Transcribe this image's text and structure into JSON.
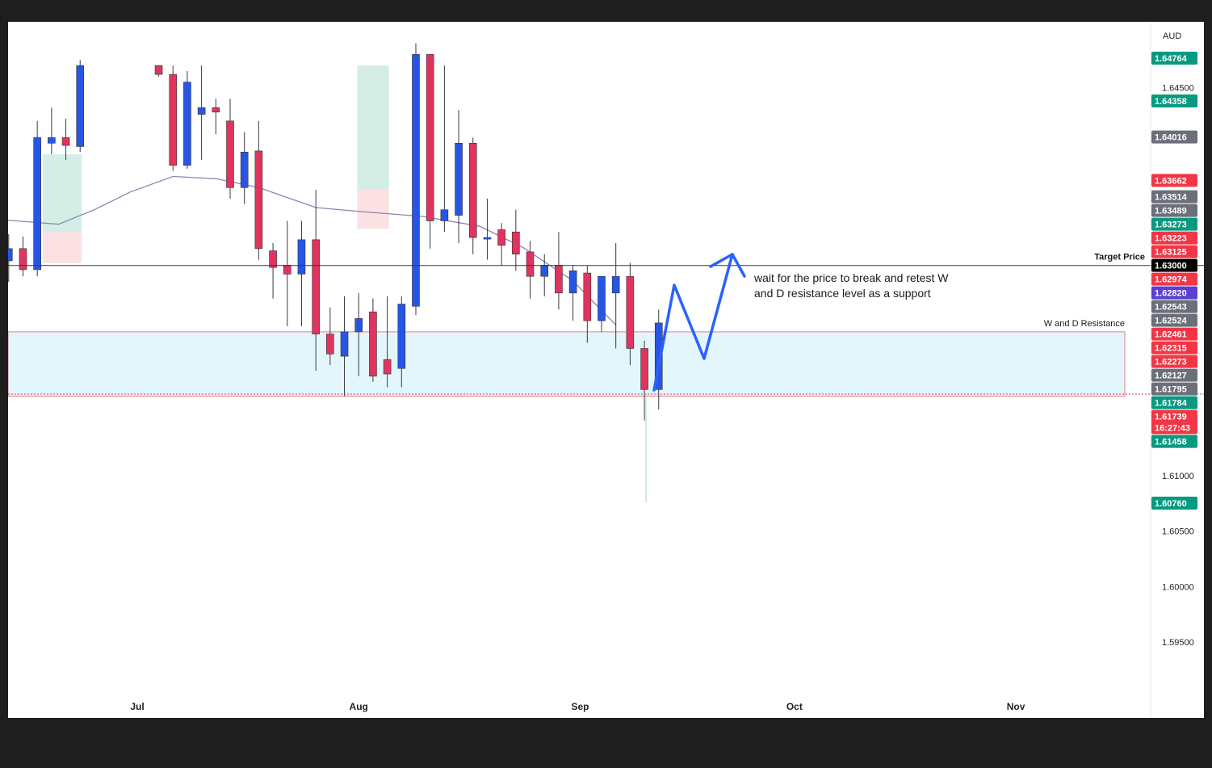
{
  "chart_data": {
    "type": "candlestick",
    "currency": "AUD",
    "x_axis": {
      "months": [
        {
          "label": "Jul",
          "date": "2024-07-01"
        },
        {
          "label": "Aug",
          "date": "2024-08-01"
        },
        {
          "label": "Sep",
          "date": "2024-09-01"
        },
        {
          "label": "Oct",
          "date": "2024-10-01"
        },
        {
          "label": "Nov",
          "date": "2024-11-01"
        }
      ]
    },
    "y_axis": {
      "ylim": [
        1.59,
        1.652
      ],
      "ticks": [
        "1.64500",
        "1.61000",
        "1.60500",
        "1.60000",
        "1.59500"
      ]
    },
    "price_tags": [
      {
        "value": "1.64764",
        "color": "#089981"
      },
      {
        "value": "1.64358",
        "color": "#089981"
      },
      {
        "value": "1.64016",
        "color": "#6b6f7a"
      },
      {
        "value": "1.63662",
        "color": "#f23645"
      },
      {
        "value": "1.63514",
        "color": "#6b6f7a"
      },
      {
        "value": "1.63489",
        "color": "#6b6f7a"
      },
      {
        "value": "1.63273",
        "color": "#089981"
      },
      {
        "value": "1.63223",
        "color": "#f23645"
      },
      {
        "value": "1.63125",
        "color": "#f23645"
      },
      {
        "value": "1.63000",
        "color": "#000000"
      },
      {
        "value": "1.62974",
        "color": "#f23645"
      },
      {
        "value": "1.62820",
        "color": "#5b3fd1"
      },
      {
        "value": "1.62543",
        "color": "#6b6f7a"
      },
      {
        "value": "1.62524",
        "color": "#6b6f7a"
      },
      {
        "value": "1.62461",
        "color": "#f23645"
      },
      {
        "value": "1.62315",
        "color": "#f23645"
      },
      {
        "value": "1.62273",
        "color": "#f23645"
      },
      {
        "value": "1.62127",
        "color": "#6b6f7a"
      },
      {
        "value": "1.61795",
        "color": "#6b6f7a"
      },
      {
        "value": "1.61784",
        "color": "#089981"
      },
      {
        "value": "1.61739",
        "color": "#f23645",
        "sub": "16:27:43"
      },
      {
        "value": "1.61458",
        "color": "#089981"
      },
      {
        "value": "1.60760",
        "color": "#089981"
      }
    ],
    "annotations": {
      "target_label": "Target Price",
      "target_price": 1.63,
      "zone_label": "W and D Resistance",
      "zone_high": 1.623,
      "zone_low": 1.6172,
      "note_line1": "wait for the price to break and retest W",
      "note_line2": "and D resistance level as a support"
    },
    "projection": {
      "path": [
        {
          "date": "2024-09-16",
          "price": 1.6174
        },
        {
          "date": "2024-09-21",
          "price": 1.6275
        },
        {
          "date": "2024-09-26",
          "price": 1.6207
        },
        {
          "date": "2024-09-30",
          "price": 1.629
        },
        {
          "date": "2024-10-01",
          "price": 1.63
        }
      ],
      "color": "#2962ff"
    },
    "ma_line": [
      {
        "date": "2024-06-01",
        "price": 1.6321
      },
      {
        "date": "2024-06-12",
        "price": 1.6331
      },
      {
        "date": "2024-06-20",
        "price": 1.6327
      },
      {
        "date": "2024-06-25",
        "price": 1.634
      },
      {
        "date": "2024-06-30",
        "price": 1.6356
      },
      {
        "date": "2024-07-06",
        "price": 1.637
      },
      {
        "date": "2024-07-12",
        "price": 1.6368
      },
      {
        "date": "2024-07-18",
        "price": 1.636
      },
      {
        "date": "2024-07-26",
        "price": 1.6342
      },
      {
        "date": "2024-08-02",
        "price": 1.6338
      },
      {
        "date": "2024-08-10",
        "price": 1.6334
      },
      {
        "date": "2024-08-18",
        "price": 1.6325
      },
      {
        "date": "2024-08-24",
        "price": 1.6306
      },
      {
        "date": "2024-08-31",
        "price": 1.6276
      },
      {
        "date": "2024-09-06",
        "price": 1.6236
      }
    ],
    "boxes": [
      {
        "start": "2024-06-18",
        "end": "2024-06-23",
        "high": 1.639,
        "low": 1.632,
        "color": "#cdebe2"
      },
      {
        "start": "2024-06-18",
        "end": "2024-06-23",
        "high": 1.632,
        "low": 1.6292,
        "color": "#fadadf"
      },
      {
        "start": "2024-08-01",
        "end": "2024-08-05",
        "high": 1.647,
        "low": 1.6358,
        "color": "#cdebe2"
      },
      {
        "start": "2024-08-01",
        "end": "2024-08-05",
        "high": 1.6358,
        "low": 1.6323,
        "color": "#fadadf"
      }
    ],
    "candles": [
      {
        "date": "2024-06-01",
        "o": 1.6365,
        "h": 1.639,
        "l": 1.632,
        "c": 1.6362
      },
      {
        "date": "2024-06-03",
        "o": 1.6358,
        "h": 1.6393,
        "l": 1.6327,
        "c": 1.6335
      },
      {
        "date": "2024-06-05",
        "o": 1.6338,
        "h": 1.6375,
        "l": 1.6326,
        "c": 1.6368
      },
      {
        "date": "2024-06-07",
        "o": 1.6368,
        "h": 1.639,
        "l": 1.6333,
        "c": 1.634
      },
      {
        "date": "2024-06-11",
        "o": 1.6343,
        "h": 1.6348,
        "l": 1.6281,
        "c": 1.6294
      },
      {
        "date": "2024-06-13",
        "o": 1.6294,
        "h": 1.6318,
        "l": 1.6275,
        "c": 1.6305
      },
      {
        "date": "2024-06-15",
        "o": 1.6305,
        "h": 1.6316,
        "l": 1.628,
        "c": 1.6286
      },
      {
        "date": "2024-06-17",
        "o": 1.6286,
        "h": 1.642,
        "l": 1.628,
        "c": 1.6405
      },
      {
        "date": "2024-06-19",
        "o": 1.64,
        "h": 1.6432,
        "l": 1.639,
        "c": 1.6405
      },
      {
        "date": "2024-06-21",
        "o": 1.6405,
        "h": 1.6422,
        "l": 1.6385,
        "c": 1.6398
      },
      {
        "date": "2024-06-23",
        "o": 1.6397,
        "h": 1.6475,
        "l": 1.6392,
        "c": 1.647
      },
      {
        "date": "2024-07-04",
        "o": 1.647,
        "h": 1.647,
        "l": 1.646,
        "c": 1.6462
      },
      {
        "date": "2024-07-06",
        "o": 1.6462,
        "h": 1.647,
        "l": 1.6375,
        "c": 1.638
      },
      {
        "date": "2024-07-08",
        "o": 1.638,
        "h": 1.6465,
        "l": 1.6377,
        "c": 1.6455
      },
      {
        "date": "2024-07-10",
        "o": 1.6426,
        "h": 1.647,
        "l": 1.6385,
        "c": 1.6432
      },
      {
        "date": "2024-07-12",
        "o": 1.6432,
        "h": 1.644,
        "l": 1.6408,
        "c": 1.6428
      },
      {
        "date": "2024-07-14",
        "o": 1.642,
        "h": 1.644,
        "l": 1.635,
        "c": 1.636
      },
      {
        "date": "2024-07-16",
        "o": 1.636,
        "h": 1.641,
        "l": 1.6345,
        "c": 1.6392
      },
      {
        "date": "2024-07-18",
        "o": 1.6393,
        "h": 1.642,
        "l": 1.6295,
        "c": 1.6305
      },
      {
        "date": "2024-07-20",
        "o": 1.6303,
        "h": 1.631,
        "l": 1.626,
        "c": 1.6288
      },
      {
        "date": "2024-07-22",
        "o": 1.629,
        "h": 1.633,
        "l": 1.6235,
        "c": 1.6282
      },
      {
        "date": "2024-07-24",
        "o": 1.6282,
        "h": 1.633,
        "l": 1.6235,
        "c": 1.6313
      },
      {
        "date": "2024-07-26",
        "o": 1.6313,
        "h": 1.6358,
        "l": 1.6195,
        "c": 1.6228
      },
      {
        "date": "2024-07-28",
        "o": 1.6228,
        "h": 1.6252,
        "l": 1.62,
        "c": 1.621
      },
      {
        "date": "2024-07-30",
        "o": 1.6208,
        "h": 1.6262,
        "l": 1.6172,
        "c": 1.623
      },
      {
        "date": "2024-08-01",
        "o": 1.623,
        "h": 1.6265,
        "l": 1.619,
        "c": 1.6242
      },
      {
        "date": "2024-08-03",
        "o": 1.6248,
        "h": 1.626,
        "l": 1.6185,
        "c": 1.619
      },
      {
        "date": "2024-08-05",
        "o": 1.6205,
        "h": 1.6262,
        "l": 1.618,
        "c": 1.6192
      },
      {
        "date": "2024-08-07",
        "o": 1.6197,
        "h": 1.6262,
        "l": 1.618,
        "c": 1.6255
      },
      {
        "date": "2024-08-09",
        "o": 1.6253,
        "h": 1.649,
        "l": 1.6245,
        "c": 1.648
      },
      {
        "date": "2024-08-11",
        "o": 1.648,
        "h": 1.648,
        "l": 1.6305,
        "c": 1.633
      },
      {
        "date": "2024-08-13",
        "o": 1.633,
        "h": 1.647,
        "l": 1.632,
        "c": 1.634
      },
      {
        "date": "2024-08-15",
        "o": 1.6335,
        "h": 1.643,
        "l": 1.631,
        "c": 1.64
      },
      {
        "date": "2024-08-17",
        "o": 1.64,
        "h": 1.6405,
        "l": 1.63,
        "c": 1.6315
      },
      {
        "date": "2024-08-19",
        "o": 1.6315,
        "h": 1.635,
        "l": 1.6295,
        "c": 1.6315
      },
      {
        "date": "2024-08-21",
        "o": 1.6322,
        "h": 1.6328,
        "l": 1.629,
        "c": 1.6308
      },
      {
        "date": "2024-08-23",
        "o": 1.632,
        "h": 1.634,
        "l": 1.6285,
        "c": 1.63
      },
      {
        "date": "2024-08-25",
        "o": 1.6302,
        "h": 1.6312,
        "l": 1.626,
        "c": 1.628
      },
      {
        "date": "2024-08-27",
        "o": 1.628,
        "h": 1.63,
        "l": 1.6262,
        "c": 1.629
      },
      {
        "date": "2024-08-29",
        "o": 1.629,
        "h": 1.632,
        "l": 1.625,
        "c": 1.6265
      },
      {
        "date": "2024-08-31",
        "o": 1.6265,
        "h": 1.629,
        "l": 1.624,
        "c": 1.6285
      },
      {
        "date": "2024-09-02",
        "o": 1.6283,
        "h": 1.629,
        "l": 1.622,
        "c": 1.624
      },
      {
        "date": "2024-09-04",
        "o": 1.624,
        "h": 1.628,
        "l": 1.623,
        "c": 1.628
      },
      {
        "date": "2024-09-06",
        "o": 1.6265,
        "h": 1.631,
        "l": 1.6215,
        "c": 1.628
      },
      {
        "date": "2024-09-08",
        "o": 1.628,
        "h": 1.6292,
        "l": 1.62,
        "c": 1.6215
      },
      {
        "date": "2024-09-10",
        "o": 1.6215,
        "h": 1.6222,
        "l": 1.615,
        "c": 1.6178
      },
      {
        "date": "2024-09-12",
        "o": 1.6178,
        "h": 1.625,
        "l": 1.616,
        "c": 1.6238
      }
    ]
  }
}
